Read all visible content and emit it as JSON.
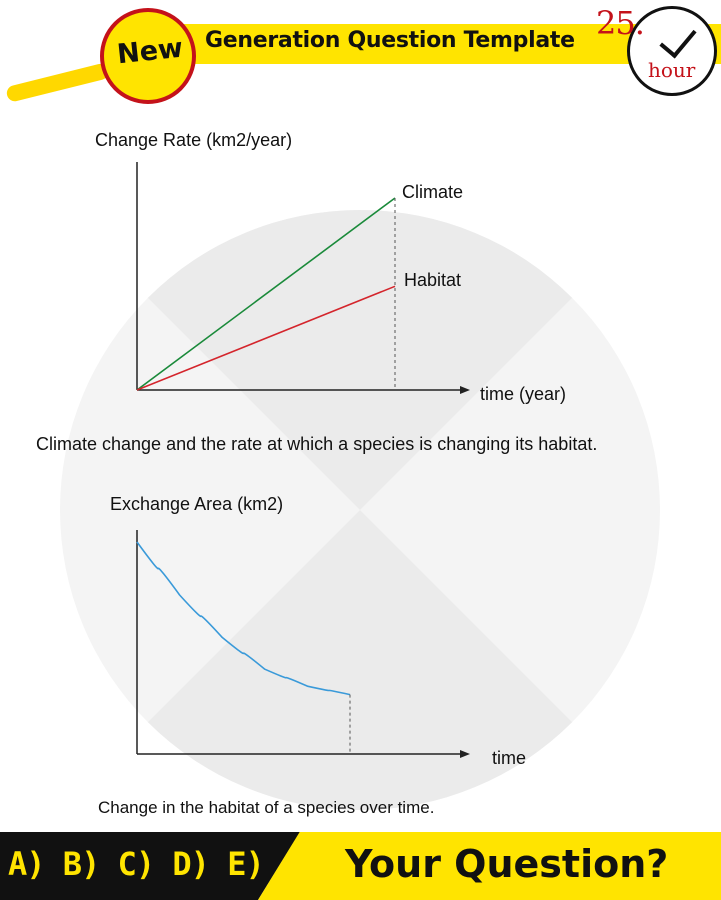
{
  "header": {
    "badge_label": "New",
    "title": "Generation Question Template",
    "clock_number": "25.",
    "clock_unit": "hour"
  },
  "chart_data": [
    {
      "type": "line",
      "ylabel": "Change Rate (km2/year)",
      "xlabel": "time (year)",
      "series": [
        {
          "name": "Climate",
          "color": "#1a8a3a",
          "x": [
            0,
            1
          ],
          "y": [
            0,
            1
          ]
        },
        {
          "name": "Habitat",
          "color": "#d4252c",
          "x": [
            0,
            1
          ],
          "y": [
            0,
            0.54
          ]
        }
      ],
      "caption": "Climate change and the rate at which a species is changing its habitat.",
      "grid": false
    },
    {
      "type": "line",
      "ylabel": "Exchange Area (km2)",
      "xlabel": "time",
      "series": [
        {
          "name": "",
          "color": "#3a9ad9",
          "x": [
            0,
            0.2,
            0.4,
            0.6,
            0.8,
            1
          ],
          "y": [
            1,
            0.75,
            0.55,
            0.4,
            0.32,
            0.28
          ]
        }
      ],
      "caption": "Change in the habitat of a species over time.",
      "grid": false
    }
  ],
  "footer": {
    "answers": "A) B) C) D) E)",
    "question": "Your Question?"
  }
}
